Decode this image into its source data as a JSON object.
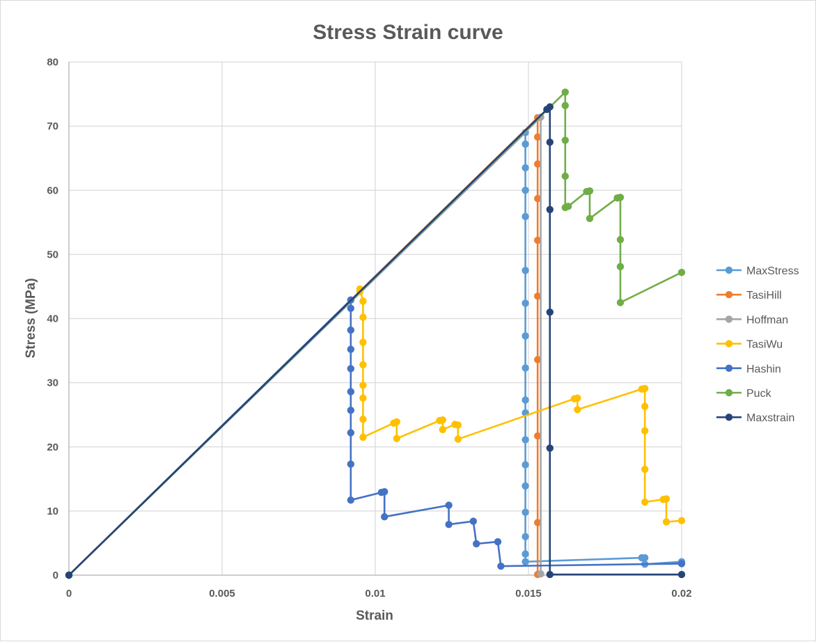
{
  "chart_data": {
    "type": "scatter",
    "mode": "lines+markers",
    "title": "Stress Strain curve",
    "xlabel": "Strain",
    "ylabel": "Stress (MPa)",
    "xlim": [
      0,
      0.02
    ],
    "ylim": [
      0,
      80
    ],
    "xticks": [
      0,
      0.005,
      0.01,
      0.015,
      0.02
    ],
    "xtick_labels": [
      "0",
      "0.005",
      "0.01",
      "0.015",
      "0.02"
    ],
    "yticks": [
      0,
      10,
      20,
      30,
      40,
      50,
      60,
      70,
      80
    ],
    "ytick_labels": [
      "0",
      "10",
      "20",
      "30",
      "40",
      "50",
      "60",
      "70",
      "80"
    ],
    "grid": true,
    "legend_position": "right",
    "series": [
      {
        "name": "MaxStress",
        "color": "#5B9BD5",
        "points": [
          [
            0,
            0
          ],
          [
            0.0149,
            69.0
          ],
          [
            0.0149,
            67.2
          ],
          [
            0.0149,
            63.5
          ],
          [
            0.0149,
            60.0
          ],
          [
            0.0149,
            55.9
          ],
          [
            0.0149,
            47.5
          ],
          [
            0.0149,
            42.4
          ],
          [
            0.0149,
            37.3
          ],
          [
            0.0149,
            32.3
          ],
          [
            0.0149,
            27.3
          ],
          [
            0.0149,
            25.3
          ],
          [
            0.0149,
            21.1
          ],
          [
            0.0149,
            17.2
          ],
          [
            0.0149,
            13.9
          ],
          [
            0.0149,
            9.8
          ],
          [
            0.0149,
            6.0
          ],
          [
            0.0149,
            3.3
          ],
          [
            0.0149,
            2.1
          ],
          [
            0.0187,
            2.7
          ],
          [
            0.0188,
            2.7
          ],
          [
            0.0188,
            1.7
          ],
          [
            0.02,
            2.1
          ]
        ]
      },
      {
        "name": "TasiHill",
        "color": "#ED7D31",
        "points": [
          [
            0,
            0
          ],
          [
            0.0153,
            71.3
          ],
          [
            0.0153,
            68.3
          ],
          [
            0.0153,
            64.1
          ],
          [
            0.0153,
            58.7
          ],
          [
            0.0153,
            52.2
          ],
          [
            0.0153,
            43.5
          ],
          [
            0.0153,
            33.6
          ],
          [
            0.0153,
            21.7
          ],
          [
            0.0153,
            8.2
          ],
          [
            0.0153,
            0.1
          ]
        ]
      },
      {
        "name": "Hoffman",
        "color": "#A5A5A5",
        "points": [
          [
            0,
            0
          ],
          [
            0.0154,
            71.4
          ],
          [
            0.0154,
            0.2
          ]
        ]
      },
      {
        "name": "TasiWu",
        "color": "#FFC000",
        "points": [
          [
            0,
            0
          ],
          [
            0.0095,
            44.2
          ],
          [
            0.0095,
            44.6
          ],
          [
            0.0096,
            42.7
          ],
          [
            0.0096,
            40.2
          ],
          [
            0.0096,
            36.3
          ],
          [
            0.0096,
            32.8
          ],
          [
            0.0096,
            29.6
          ],
          [
            0.0096,
            27.6
          ],
          [
            0.0096,
            24.3
          ],
          [
            0.0096,
            21.5
          ],
          [
            0.0106,
            23.7
          ],
          [
            0.0107,
            23.9
          ],
          [
            0.0107,
            21.3
          ],
          [
            0.0121,
            24.1
          ],
          [
            0.0122,
            24.2
          ],
          [
            0.0122,
            22.7
          ],
          [
            0.0126,
            23.5
          ],
          [
            0.0127,
            23.4
          ],
          [
            0.0127,
            21.2
          ],
          [
            0.0165,
            27.5
          ],
          [
            0.0166,
            27.6
          ],
          [
            0.0166,
            25.8
          ],
          [
            0.0187,
            29.0
          ],
          [
            0.0188,
            29.1
          ],
          [
            0.0188,
            26.3
          ],
          [
            0.0188,
            22.5
          ],
          [
            0.0188,
            16.5
          ],
          [
            0.0188,
            11.4
          ],
          [
            0.0194,
            11.8
          ],
          [
            0.0195,
            11.9
          ],
          [
            0.0195,
            8.3
          ],
          [
            0.02,
            8.5
          ]
        ]
      },
      {
        "name": "Hashin",
        "color": "#4472C4",
        "points": [
          [
            0,
            0
          ],
          [
            0.0092,
            42.9
          ],
          [
            0.0092,
            41.6
          ],
          [
            0.0092,
            38.2
          ],
          [
            0.0092,
            35.2
          ],
          [
            0.0092,
            32.2
          ],
          [
            0.0092,
            28.6
          ],
          [
            0.0092,
            25.7
          ],
          [
            0.0092,
            22.2
          ],
          [
            0.0092,
            17.3
          ],
          [
            0.0092,
            11.7
          ],
          [
            0.0102,
            12.9
          ],
          [
            0.0103,
            13.0
          ],
          [
            0.0103,
            9.1
          ],
          [
            0.0124,
            10.9
          ],
          [
            0.0124,
            7.9
          ],
          [
            0.0132,
            8.4
          ],
          [
            0.0133,
            4.9
          ],
          [
            0.014,
            5.2
          ],
          [
            0.0141,
            1.4
          ],
          [
            0.02,
            1.8
          ]
        ]
      },
      {
        "name": "Puck",
        "color": "#70AD47",
        "points": [
          [
            0,
            0
          ],
          [
            0.0162,
            75.3
          ],
          [
            0.0162,
            73.2
          ],
          [
            0.0162,
            67.8
          ],
          [
            0.0162,
            62.2
          ],
          [
            0.0162,
            57.3
          ],
          [
            0.0163,
            57.5
          ],
          [
            0.0169,
            59.8
          ],
          [
            0.017,
            59.9
          ],
          [
            0.017,
            55.6
          ],
          [
            0.0179,
            58.8
          ],
          [
            0.018,
            58.9
          ],
          [
            0.018,
            52.3
          ],
          [
            0.018,
            48.1
          ],
          [
            0.018,
            42.5
          ],
          [
            0.02,
            47.2
          ]
        ]
      },
      {
        "name": "Maxstrain",
        "color": "#264478",
        "points": [
          [
            0,
            0
          ],
          [
            0.0156,
            72.6
          ],
          [
            0.0157,
            73.0
          ],
          [
            0.0157,
            67.5
          ],
          [
            0.0157,
            57.0
          ],
          [
            0.0157,
            41.0
          ],
          [
            0.0157,
            19.8
          ],
          [
            0.0157,
            0.1
          ],
          [
            0.02,
            0.1
          ]
        ]
      }
    ]
  }
}
